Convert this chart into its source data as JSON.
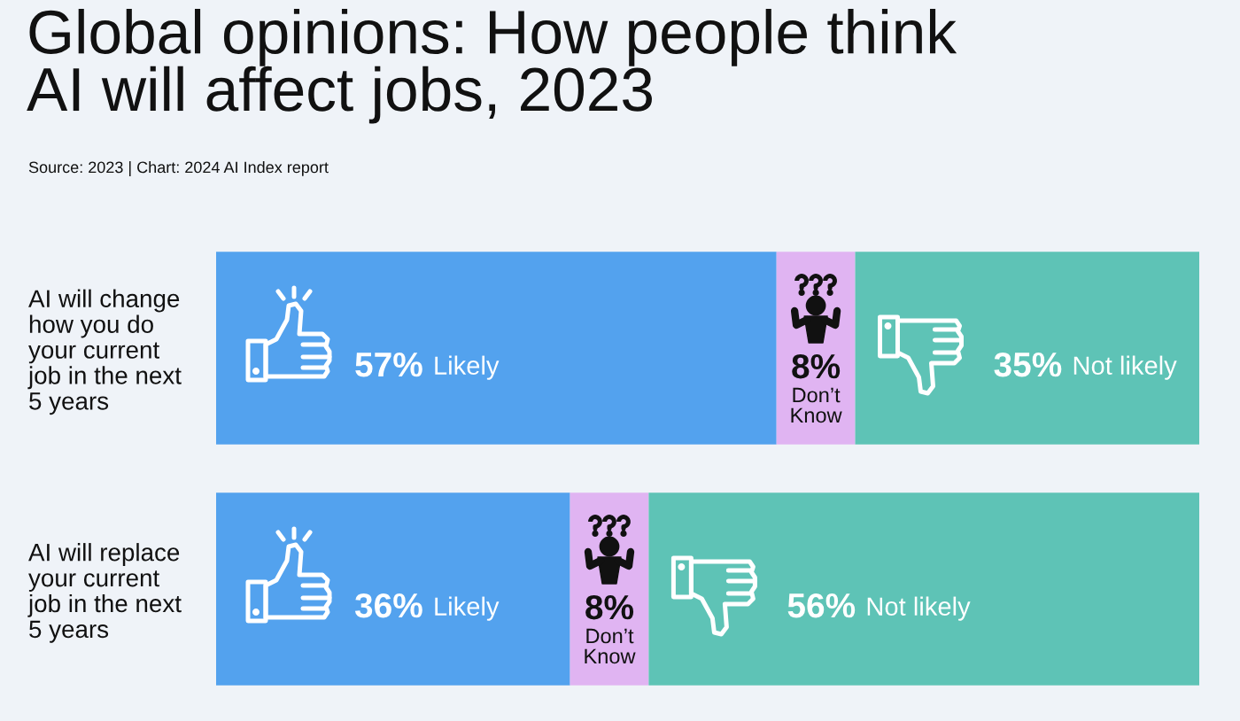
{
  "chart_data": {
    "type": "bar",
    "orientation": "horizontal",
    "stacked": true,
    "title": "Global opinions: How people think\nAI will affect jobs, 2023",
    "annotations": [
      "Source: 2023 | Chart: 2024 AI Index report"
    ],
    "categories": [
      "AI will change\nhow you do\nyour current\njob in the next\n5 years",
      "AI will replace\nyour current\njob in the next\n5 years"
    ],
    "series": [
      {
        "name": "Likely",
        "color": "#53a2ee",
        "values": [
          57,
          36
        ],
        "value_labels": [
          "57%",
          "36%"
        ]
      },
      {
        "name": "Don’t Know",
        "color": "#e0b4f2",
        "values": [
          8,
          8
        ],
        "value_labels": [
          "8%",
          "8%"
        ]
      },
      {
        "name": "Not likely",
        "color": "#5ec3b6",
        "values": [
          35,
          56
        ],
        "value_labels": [
          "35%",
          "56%"
        ]
      }
    ],
    "xlim": [
      0,
      100
    ],
    "tick_labels": "y"
  }
}
